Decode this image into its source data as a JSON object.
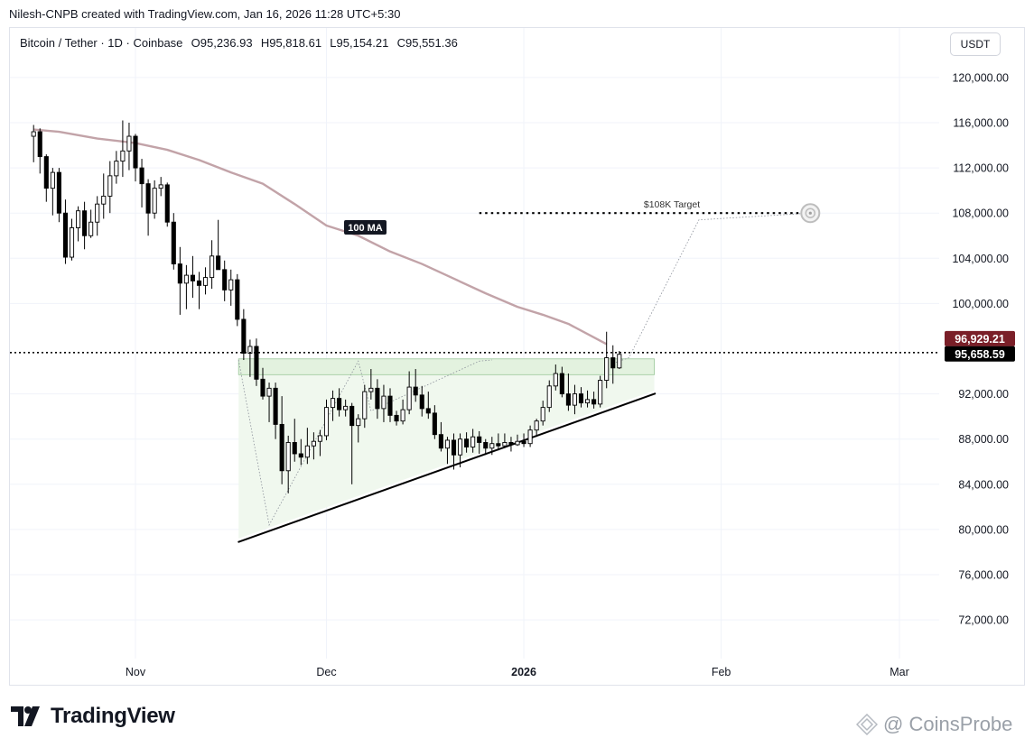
{
  "caption": "Nilesh-CNPB created with TradingView.com, Jan 16, 2026 11:28 UTC+5:30",
  "legend": {
    "symbol": "Bitcoin / Tether · 1D · Coinbase",
    "open": "O95,236.93",
    "high": "H95,818.61",
    "low": "L95,154.21",
    "close": "C95,551.36"
  },
  "currency": "USDT",
  "brand": "TradingView",
  "watermark": "@ CoinsProbe",
  "colors": {
    "up": "#ffffff",
    "down": "#000000",
    "ma": "#c2a3a8",
    "zone": "#e3f2df",
    "triangle": "#f0f8ee",
    "price_marker": "#7a1f28"
  },
  "chart_data": {
    "type": "candlestick",
    "title": "Bitcoin / Tether · 1D · Coinbase",
    "y_axis": {
      "min": 68000,
      "max": 123000,
      "ticks": [
        120000,
        116000,
        112000,
        108000,
        104000,
        100000,
        92000,
        88000,
        84000,
        80000,
        76000,
        72000
      ],
      "tick_labels": [
        "120,000.00",
        "116,000.00",
        "112,000.00",
        "108,000.00",
        "104,000.00",
        "100,000.00",
        "92,000.00",
        "88,000.00",
        "84,000.00",
        "80,000.00",
        "76,000.00",
        "72,000.00"
      ],
      "price_labels": [
        {
          "text": "96,929.21",
          "value": 96929.21,
          "style": "dark-red"
        },
        {
          "text": "95,658.59",
          "value": 95658.59,
          "style": "black"
        }
      ]
    },
    "x_axis": {
      "ticks": [
        {
          "label": "Nov",
          "day": 0
        },
        {
          "label": "Dec",
          "day": 30
        },
        {
          "label": "2026",
          "day": 61
        },
        {
          "label": "Feb",
          "day": 92
        },
        {
          "label": "Mar",
          "day": 120
        }
      ]
    },
    "candles_ohlc": [
      [
        114800,
        115800,
        112500,
        115200
      ],
      [
        115200,
        115500,
        111500,
        113000
      ],
      [
        113000,
        113200,
        109000,
        110200
      ],
      [
        110200,
        112000,
        107800,
        111600
      ],
      [
        111600,
        112000,
        107200,
        108000
      ],
      [
        108000,
        109200,
        103500,
        104100
      ],
      [
        104100,
        107500,
        103800,
        106700
      ],
      [
        106700,
        108600,
        105500,
        108200
      ],
      [
        108200,
        109000,
        104800,
        106000
      ],
      [
        106000,
        108300,
        105800,
        107200
      ],
      [
        107200,
        109500,
        106000,
        108800
      ],
      [
        108800,
        111500,
        107500,
        109500
      ],
      [
        109500,
        112600,
        108000,
        111300
      ],
      [
        111300,
        113500,
        110600,
        112600
      ],
      [
        112600,
        116200,
        111200,
        113500
      ],
      [
        113500,
        116000,
        111800,
        114800
      ],
      [
        114800,
        115000,
        110800,
        112000
      ],
      [
        112000,
        112800,
        108500,
        110600
      ],
      [
        110600,
        111000,
        106000,
        108000
      ],
      [
        108000,
        110900,
        107500,
        110200
      ],
      [
        110200,
        111200,
        109500,
        110500
      ],
      [
        110500,
        110700,
        106800,
        107200
      ],
      [
        107200,
        108000,
        103000,
        103500
      ],
      [
        103500,
        105000,
        99000,
        101800
      ],
      [
        101800,
        103400,
        99500,
        102500
      ],
      [
        102500,
        104200,
        100500,
        102000
      ],
      [
        102000,
        102800,
        99500,
        101600
      ],
      [
        101600,
        103200,
        100800,
        102300
      ],
      [
        102300,
        105600,
        101300,
        104200
      ],
      [
        104200,
        107400,
        103400,
        103000
      ],
      [
        103000,
        103800,
        100200,
        101200
      ],
      [
        101200,
        103000,
        99800,
        102100
      ],
      [
        102100,
        102600,
        98000,
        98600
      ],
      [
        98600,
        99500,
        95000,
        95600
      ],
      [
        95600,
        96800,
        93500,
        96200
      ],
      [
        96200,
        96900,
        92700,
        93300
      ],
      [
        93300,
        94300,
        91500,
        91800
      ],
      [
        91800,
        93000,
        89500,
        92500
      ],
      [
        92500,
        93000,
        88000,
        89300
      ],
      [
        89300,
        91800,
        84000,
        85200
      ],
      [
        85200,
        88300,
        83200,
        87700
      ],
      [
        87700,
        89800,
        86000,
        86700
      ],
      [
        86700,
        88000,
        85700,
        86400
      ],
      [
        86400,
        89000,
        85800,
        87400
      ],
      [
        87400,
        88600,
        86200,
        87800
      ],
      [
        87800,
        88800,
        86500,
        88300
      ],
      [
        88300,
        91500,
        87900,
        90800
      ],
      [
        90800,
        92300,
        89600,
        91600
      ],
      [
        91600,
        92500,
        90000,
        90600
      ],
      [
        90600,
        91500,
        90000,
        90900
      ],
      [
        90900,
        91200,
        84000,
        89200
      ],
      [
        89200,
        90200,
        87700,
        89800
      ],
      [
        89800,
        92800,
        89000,
        92200
      ],
      [
        92200,
        94200,
        91500,
        92500
      ],
      [
        92500,
        93300,
        89800,
        90700
      ],
      [
        90700,
        92800,
        89500,
        91800
      ],
      [
        91800,
        92500,
        89500,
        90100
      ],
      [
        90100,
        90500,
        89200,
        89600
      ],
      [
        89600,
        91500,
        89300,
        90600
      ],
      [
        90600,
        94000,
        90200,
        92600
      ],
      [
        92600,
        94200,
        91300,
        91900
      ],
      [
        91900,
        92700,
        90000,
        90700
      ],
      [
        90700,
        92200,
        89800,
        90300
      ],
      [
        90300,
        91000,
        88000,
        88400
      ],
      [
        88400,
        89500,
        86900,
        87200
      ],
      [
        87200,
        88200,
        85800,
        87900
      ],
      [
        87900,
        88500,
        85300,
        86600
      ],
      [
        86600,
        88500,
        85500,
        88000
      ],
      [
        88000,
        88600,
        86800,
        87300
      ],
      [
        87300,
        88900,
        86800,
        88200
      ],
      [
        88200,
        88700,
        86700,
        87700
      ],
      [
        87700,
        88000,
        86600,
        87200
      ],
      [
        87200,
        88200,
        86600,
        87600
      ],
      [
        87600,
        88500,
        87000,
        87400
      ],
      [
        87400,
        88500,
        87200,
        87700
      ],
      [
        87700,
        88200,
        86900,
        87500
      ],
      [
        87500,
        88400,
        87400,
        87800
      ],
      [
        87800,
        88500,
        87300,
        87600
      ],
      [
        87600,
        89200,
        87300,
        88800
      ],
      [
        88800,
        89800,
        88200,
        89600
      ],
      [
        89600,
        91400,
        89200,
        90800
      ],
      [
        90800,
        93200,
        90400,
        92700
      ],
      [
        92700,
        94600,
        92300,
        93800
      ],
      [
        93800,
        94400,
        91700,
        92000
      ],
      [
        92000,
        93800,
        90500,
        91000
      ],
      [
        91000,
        92800,
        90200,
        92000
      ],
      [
        92000,
        92600,
        90800,
        91200
      ],
      [
        91200,
        92300,
        90800,
        91500
      ],
      [
        91500,
        92200,
        90700,
        91100
      ],
      [
        91100,
        93600,
        90800,
        93200
      ],
      [
        93200,
        97500,
        92500,
        95200
      ],
      [
        95200,
        96300,
        92900,
        94300
      ],
      [
        94300,
        95800,
        94200,
        95500
      ]
    ],
    "candle_days": "sequential starting at day -16 (Oct 15)",
    "moving_average": {
      "label": "100 MA",
      "points": [
        [
          -16,
          115400
        ],
        [
          -12,
          115200
        ],
        [
          -6,
          114600
        ],
        [
          0,
          114200
        ],
        [
          5,
          113600
        ],
        [
          10,
          112700
        ],
        [
          15,
          111600
        ],
        [
          20,
          110600
        ],
        [
          25,
          108800
        ],
        [
          30,
          106900
        ],
        [
          35,
          106000
        ],
        [
          40,
          104600
        ],
        [
          45,
          103500
        ],
        [
          50,
          102200
        ],
        [
          55,
          100900
        ],
        [
          60,
          99700
        ],
        [
          64,
          99000
        ],
        [
          68,
          98200
        ],
        [
          72,
          97000
        ],
        [
          74,
          96400
        ]
      ]
    },
    "annotations": {
      "target_label": "$108K Target",
      "target_price": 108000,
      "target_start_day": 54,
      "target_end_day": 106,
      "dotted_price": 95658.59,
      "resistance_zone": [
        93700,
        95100
      ],
      "triangle": {
        "start_day": 16.2,
        "apex_day": 81.5,
        "top": 95100,
        "low_start": 79200,
        "low_end": 92300
      },
      "projection_path": [
        [
          75,
          94700
        ],
        [
          77.5,
          95200
        ],
        [
          88.5,
          107400
        ],
        [
          106,
          108000
        ]
      ],
      "swing_path": [
        [
          16.2,
          95000
        ],
        [
          21,
          80400
        ],
        [
          35,
          94900
        ],
        [
          37,
          90500
        ],
        [
          54,
          94900
        ],
        [
          56,
          95000
        ]
      ]
    }
  }
}
